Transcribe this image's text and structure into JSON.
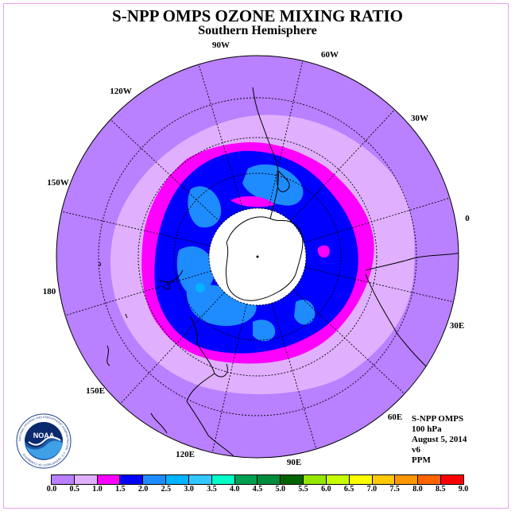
{
  "title": "S-NPP OMPS OZONE MIXING RATIO",
  "subtitle": "Southern Hemisphere",
  "map": {
    "projection": "polar-stereographic-south",
    "longitude_labels": [
      {
        "name": "0",
        "text": "0"
      },
      {
        "name": "30e",
        "text": "30E"
      },
      {
        "name": "60e",
        "text": "60E"
      },
      {
        "name": "90e",
        "text": "90E"
      },
      {
        "name": "120e",
        "text": "120E"
      },
      {
        "name": "150e",
        "text": "150E"
      },
      {
        "name": "180",
        "text": "180"
      },
      {
        "name": "150w",
        "text": "150W"
      },
      {
        "name": "120w",
        "text": "120W"
      },
      {
        "name": "90w",
        "text": "90W"
      },
      {
        "name": "60w",
        "text": "60W"
      },
      {
        "name": "30w",
        "text": "30W"
      }
    ],
    "colors": {
      "ocean_field": "#b980ff",
      "ring_light": "#e0b0ff",
      "ring_magenta": "#ff00ff",
      "core_blue": "#0000ff",
      "patch_lightblue": "#1e8cff",
      "polar_cap": "#ffffff"
    }
  },
  "info": {
    "instrument": "S-NPP OMPS",
    "level": "100 hPa",
    "date": "August 5, 2014",
    "version": "v6",
    "units": "PPM"
  },
  "logo": {
    "text": "NOAA",
    "ring_text": "NATIONAL OCEANIC AND ATMOSPHERIC ADMINISTRATION · U.S. DEPARTMENT OF COMMERCE"
  },
  "colorbar": {
    "ticks": [
      "0.0",
      "0.5",
      "1.0",
      "1.5",
      "2.0",
      "2.5",
      "3.0",
      "3.5",
      "4.0",
      "4.5",
      "5.0",
      "5.5",
      "6.0",
      "6.5",
      "7.0",
      "7.5",
      "8.0",
      "8.5",
      "9.0"
    ],
    "colors": [
      "#b980ff",
      "#e0b0ff",
      "#ff00ff",
      "#0000ff",
      "#1e8cff",
      "#00b4ff",
      "#32c8ff",
      "#00ffc8",
      "#00a050",
      "#008c3c",
      "#006400",
      "#96e600",
      "#c8ff00",
      "#ffff00",
      "#ffc800",
      "#ff9600",
      "#ff6400",
      "#ff0000",
      "#8c5a3c"
    ]
  }
}
